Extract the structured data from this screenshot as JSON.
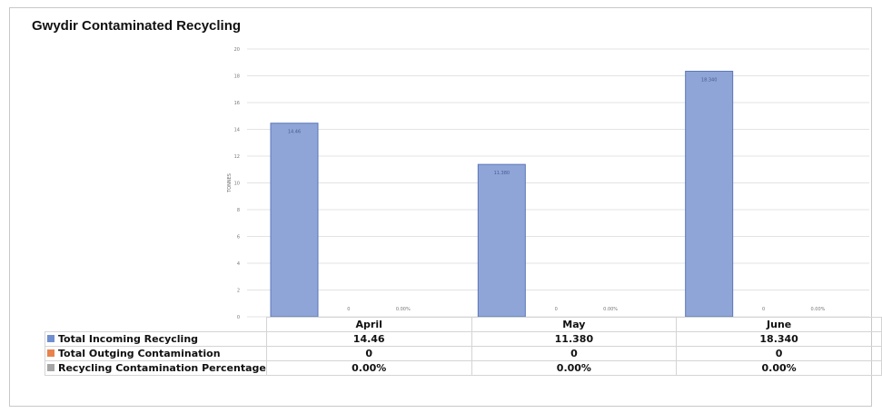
{
  "colors": {
    "incoming": "#8fa5d8",
    "incoming_edge": "#5b77b8",
    "outgoing": "#e8834d",
    "percentage": "#a5a5a5",
    "grid": "#e3e3e3"
  },
  "chart_data": {
    "type": "bar",
    "title": "Gwydir Contaminated Recycling",
    "ylabel": "TONNES",
    "ylim": [
      0,
      20
    ],
    "yticks": [
      "0",
      "2",
      "4",
      "6",
      "8",
      "10",
      "12",
      "14",
      "16",
      "18",
      "20"
    ],
    "categories": [
      "April",
      "May",
      "June"
    ],
    "series": [
      {
        "name": "Total Incoming Recycling",
        "values": [
          14.46,
          11.38,
          18.34
        ],
        "labels": [
          "14.46",
          "11.380",
          "18.340"
        ]
      },
      {
        "name": "Total Outging Contamination",
        "values": [
          0,
          0,
          0
        ],
        "labels": [
          "0",
          "0",
          "0"
        ]
      },
      {
        "name": "Recycling Contamination Percentage",
        "values": [
          0,
          0,
          0
        ],
        "labels": [
          "0.00%",
          "0.00%",
          "0.00%"
        ]
      }
    ],
    "grid": true,
    "legend": "data table"
  }
}
